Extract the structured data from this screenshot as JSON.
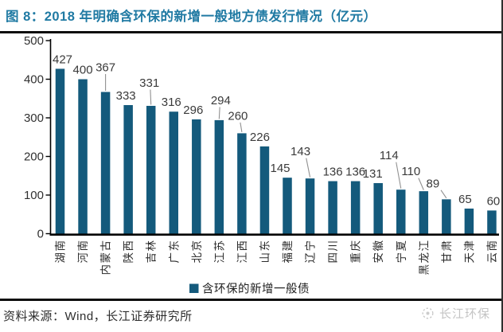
{
  "figure": {
    "title": "图 8：2018 年明确含环保的新增一般地方债发行情况（亿元）",
    "source": "资料来源：Wind，长江证券研究所",
    "watermark": "长江环保"
  },
  "chart_data": {
    "type": "bar",
    "title": "2018 年明确含环保的新增一般地方债发行情况（亿元）",
    "unit": "亿元",
    "categories": [
      "湖南",
      "河南",
      "内蒙古",
      "陕西",
      "吉林",
      "广东",
      "北京",
      "江苏",
      "江西",
      "山东",
      "福建",
      "辽宁",
      "四川",
      "重庆",
      "安徽",
      "宁夏",
      "黑龙江",
      "甘肃",
      "天津",
      "云南"
    ],
    "values": [
      427,
      400,
      367,
      333,
      331,
      316,
      296,
      294,
      260,
      226,
      145,
      143,
      136,
      136,
      131,
      114,
      110,
      89,
      65,
      60
    ],
    "ylim": [
      0,
      500
    ],
    "yticks": [
      0,
      100,
      200,
      300,
      400,
      500
    ],
    "grid": false,
    "legend": {
      "label": "含环保的新增一般债",
      "position": "bottom"
    },
    "colors": {
      "bar": "#145A7C",
      "value_label": "#3a3a3a",
      "axis": "#000000",
      "tick_label": "#303030",
      "category_label": "#2b2b2b",
      "leader_line": "#909090",
      "title": "#207AA3"
    },
    "label_layout": [
      [
        3,
        0
      ],
      [
        0,
        0
      ],
      [
        0,
        26
      ],
      [
        -3,
        0
      ],
      [
        -2,
        24
      ],
      [
        -3,
        0
      ],
      [
        -4,
        0
      ],
      [
        2,
        20
      ],
      [
        -5,
        17
      ],
      [
        -6,
        0
      ],
      [
        -9,
        0
      ],
      [
        -12,
        29
      ],
      [
        0,
        0
      ],
      [
        0,
        0
      ],
      [
        -7,
        0
      ],
      [
        -15,
        38
      ],
      [
        -16,
        20
      ],
      [
        -17,
        15
      ],
      [
        -5,
        0
      ],
      [
        2,
        0
      ]
    ]
  }
}
